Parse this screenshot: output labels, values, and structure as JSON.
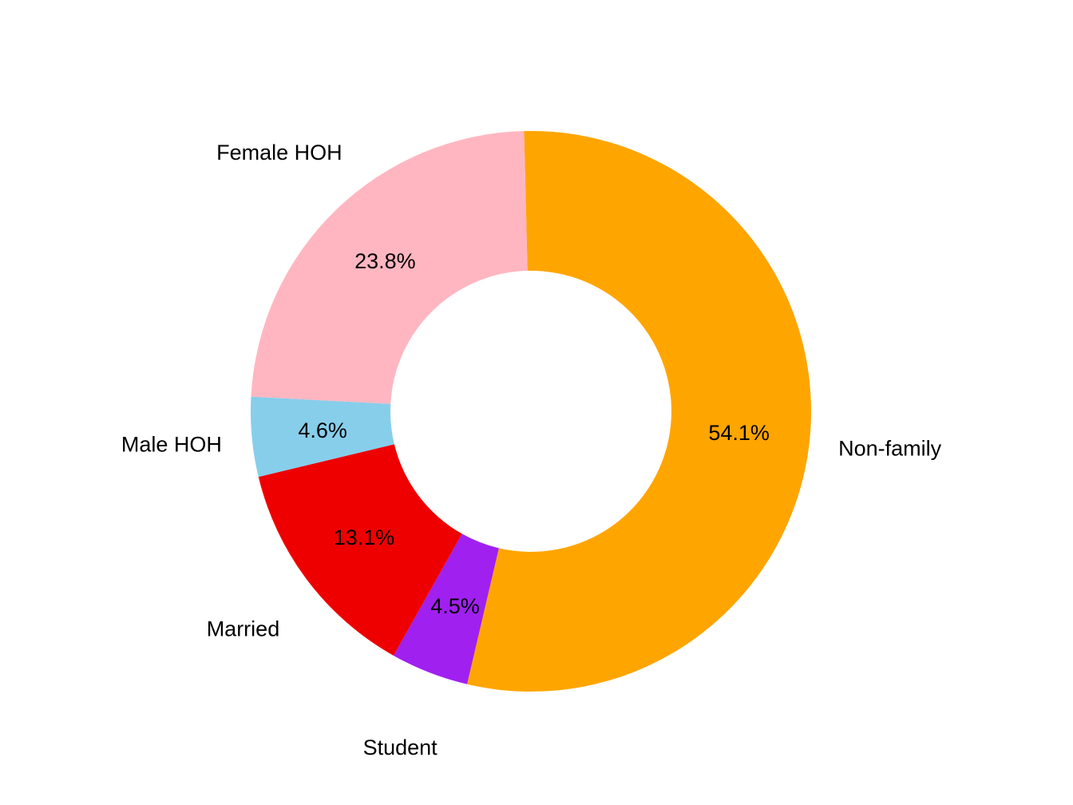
{
  "chart_data": {
    "type": "pie",
    "subtype": "donut",
    "title": "",
    "categories": [
      "Non-family",
      "Student",
      "Married",
      "Male HOH",
      "Female HOH"
    ],
    "values": [
      54.1,
      4.5,
      13.1,
      4.6,
      23.8
    ],
    "value_labels": [
      "54.1%",
      "4.5%",
      "13.1%",
      "4.6%",
      "23.8%"
    ],
    "colors": [
      "#FFA500",
      "#A020F0",
      "#EE0000",
      "#87CEEB",
      "#FFB6C1"
    ],
    "legend": "none"
  }
}
